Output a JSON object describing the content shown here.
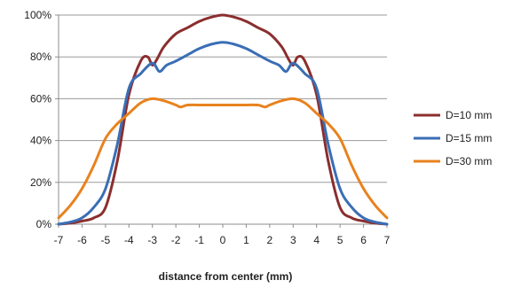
{
  "chart_data": {
    "type": "line",
    "title": "",
    "xlabel": "distance from center (mm)",
    "ylabel": "",
    "xlim": [
      -7,
      7
    ],
    "ylim": [
      0,
      100
    ],
    "x_ticks": [
      -7,
      -6,
      -5,
      -4,
      -3,
      -2,
      -1,
      0,
      1,
      2,
      3,
      4,
      5,
      6,
      7
    ],
    "y_ticks": [
      0,
      20,
      40,
      60,
      80,
      100
    ],
    "y_tick_labels": [
      "0%",
      "20%",
      "40%",
      "60%",
      "80%",
      "100%"
    ],
    "grid": "horizontal",
    "legend_position": "right",
    "series": [
      {
        "name": "D=10 mm",
        "color": "#8B2E2E",
        "x": [
          -7,
          -6.5,
          -6,
          -5.5,
          -5,
          -4.5,
          -4,
          -3.5,
          -3.2,
          -3,
          -2.8,
          -2.5,
          -2,
          -1.5,
          -1,
          -0.5,
          0,
          0.5,
          1,
          1.5,
          2,
          2.5,
          2.8,
          3,
          3.2,
          3.5,
          4,
          4.5,
          5,
          5.5,
          6,
          6.5,
          7
        ],
        "y": [
          0,
          0.5,
          1.5,
          3,
          8,
          30,
          62,
          78,
          80,
          76,
          79,
          85,
          91,
          94,
          97,
          99,
          100,
          99,
          97,
          94,
          91,
          85,
          79,
          76,
          80,
          78,
          62,
          30,
          8,
          3,
          1.5,
          0.5,
          0
        ]
      },
      {
        "name": "D=15 mm",
        "color": "#3A6EB5",
        "x": [
          -7,
          -6.5,
          -6,
          -5.5,
          -5,
          -4.5,
          -4,
          -3.5,
          -3,
          -2.7,
          -2.4,
          -2,
          -1.5,
          -1,
          -0.5,
          0,
          0.5,
          1,
          1.5,
          2,
          2.4,
          2.7,
          3,
          3.5,
          4,
          4.5,
          5,
          5.5,
          6,
          6.5,
          7
        ],
        "y": [
          0,
          1,
          3,
          8,
          17,
          38,
          65,
          72,
          77,
          73,
          76,
          78,
          81,
          84,
          86,
          87,
          86,
          84,
          81,
          78,
          76,
          73,
          77,
          72,
          65,
          38,
          17,
          8,
          3,
          1,
          0
        ]
      },
      {
        "name": "D=30 mm",
        "color": "#E8821E",
        "x": [
          -7,
          -6.5,
          -6,
          -5.5,
          -5,
          -4.5,
          -4,
          -3.5,
          -3,
          -2.5,
          -2,
          -1.8,
          -1.5,
          -1,
          -0.5,
          0,
          0.5,
          1,
          1.5,
          1.8,
          2,
          2.5,
          3,
          3.5,
          4,
          4.5,
          5,
          5.5,
          6,
          6.5,
          7
        ],
        "y": [
          3,
          9,
          17,
          28,
          41,
          48,
          53,
          58,
          60,
          59,
          57,
          56,
          57,
          57,
          57,
          57,
          57,
          57,
          57,
          56,
          57,
          59,
          60,
          58,
          53,
          48,
          41,
          28,
          17,
          9,
          3
        ]
      }
    ]
  }
}
